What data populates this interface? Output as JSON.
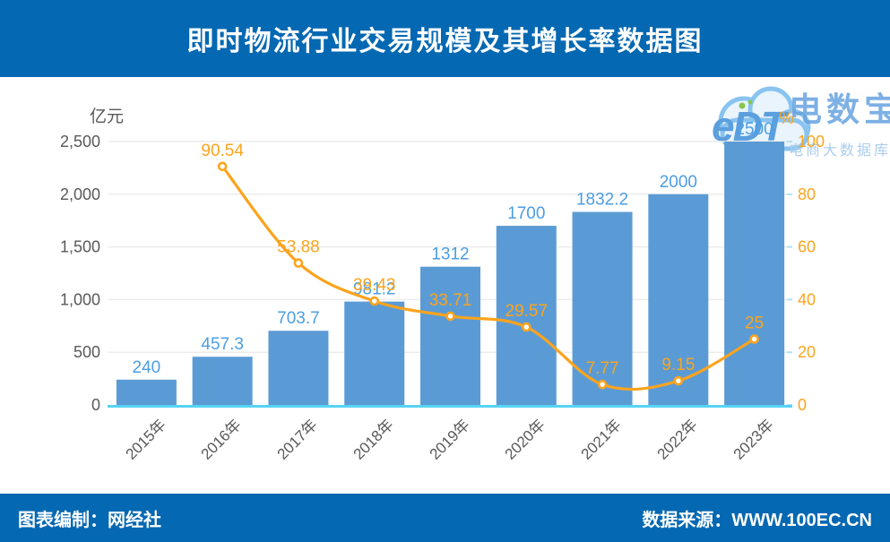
{
  "header": {
    "title": "即时物流行业交易规模及其增长率数据图"
  },
  "footer": {
    "left": "图表编制：网经社",
    "right": "数据来源：WWW.100EC.CN"
  },
  "watermark": {
    "logo_text": "eDT",
    "brand": "电数宝",
    "subtitle": "电商大数据库"
  },
  "chart_data": {
    "type": "bar",
    "categories": [
      "2015年",
      "2016年",
      "2017年",
      "2018年",
      "2019年",
      "2020年",
      "2021年",
      "2022年",
      "2023年"
    ],
    "series": [
      {
        "name": "交易规模",
        "type": "bar",
        "unit": "亿元",
        "values": [
          240,
          457.3,
          703.7,
          981.2,
          1312,
          1700,
          1832.2,
          2000,
          2500
        ]
      },
      {
        "name": "增长率",
        "type": "line",
        "unit": "%",
        "values": [
          null,
          90.54,
          53.88,
          39.43,
          33.71,
          29.57,
          7.77,
          9.15,
          25
        ]
      }
    ],
    "left_axis": {
      "label": "亿元",
      "min": 0,
      "max": 2500,
      "tick_values": [
        0,
        500,
        1000,
        1500,
        2000,
        2500
      ],
      "tick_labels": [
        "0",
        "500",
        "1,000",
        "1,500",
        "2,000",
        "2,500"
      ]
    },
    "right_axis": {
      "label": "%",
      "min": 0,
      "max": 100,
      "tick_values": [
        0,
        20,
        40,
        60,
        80,
        100
      ],
      "tick_labels": [
        "0",
        "20",
        "40",
        "60",
        "80",
        "100"
      ]
    },
    "grid": true,
    "legend": "none",
    "colors": {
      "header_bg": "#0568b2",
      "bar_fill": "#5b9bd5",
      "bar_label": "#4c9ee2",
      "line": "#fba41e",
      "axis_text": "#595959",
      "gridline": "#ececec",
      "axis_line": "#55d4f4",
      "right_tick": "#abe5f7"
    }
  }
}
